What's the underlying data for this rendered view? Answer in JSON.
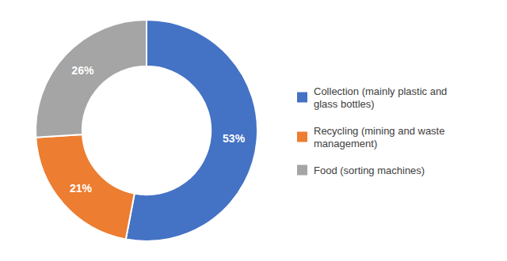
{
  "chart_data": {
    "type": "donut",
    "categories": [
      "Collection (mainly plastic and\nglass bottles)",
      "Recycling (mining and waste\nmanagement)",
      "Food (sorting machines)"
    ],
    "values": [
      53,
      21,
      26
    ],
    "value_labels": [
      "53%",
      "21%",
      "26%"
    ],
    "colors": [
      "#4472C4",
      "#ED7D31",
      "#A5A5A5"
    ],
    "data_labels": true,
    "legend": "right"
  }
}
